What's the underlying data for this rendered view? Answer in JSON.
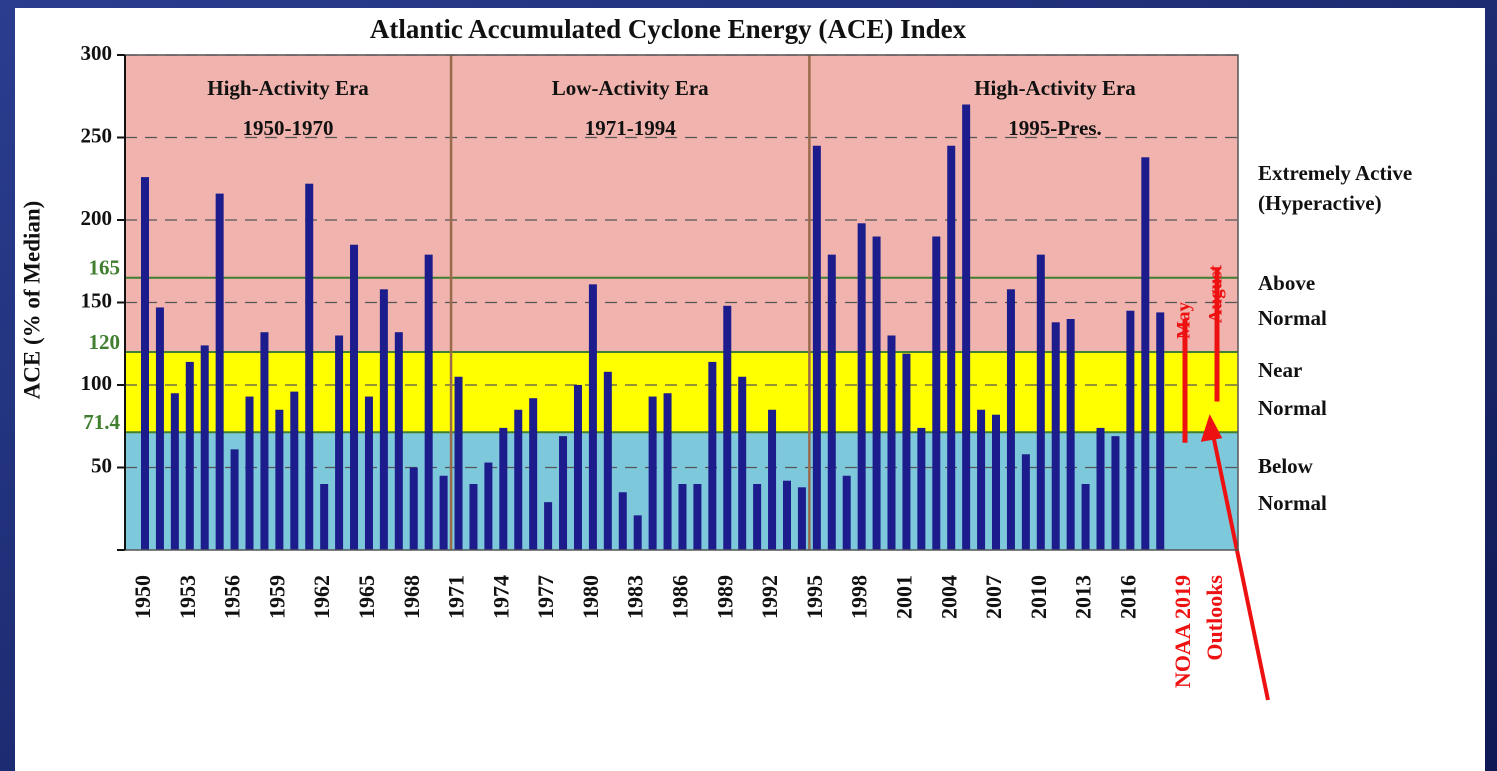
{
  "chart_data": {
    "type": "bar",
    "title": "Atlantic Accumulated Cyclone Energy (ACE) Index",
    "ylabel": "ACE  (% of Median)",
    "categories": [
      "1950",
      null,
      null,
      "1953",
      null,
      null,
      "1956",
      null,
      null,
      "1959",
      null,
      null,
      "1962",
      null,
      null,
      "1965",
      null,
      null,
      "1968",
      null,
      null,
      "1971",
      null,
      null,
      "1974",
      null,
      null,
      "1977",
      null,
      null,
      "1980",
      null,
      null,
      "1983",
      null,
      null,
      "1986",
      null,
      null,
      "1989",
      null,
      null,
      "1992",
      null,
      null,
      "1995",
      null,
      null,
      "1998",
      null,
      null,
      "2001",
      null,
      null,
      "2004",
      null,
      null,
      "2007",
      null,
      null,
      "2010",
      null,
      null,
      "2013",
      null,
      null,
      "2016",
      null,
      null,
      "NOAA 2019",
      "Outlooks"
    ],
    "values": [
      226,
      147,
      95,
      114,
      124,
      216,
      61,
      93,
      132,
      85,
      96,
      222,
      40,
      130,
      185,
      93,
      158,
      132,
      50,
      179,
      45,
      105,
      40,
      53,
      74,
      85,
      92,
      29,
      69,
      100,
      161,
      108,
      35,
      21,
      93,
      95,
      40,
      40,
      114,
      148,
      105,
      40,
      85,
      42,
      38,
      245,
      179,
      45,
      198,
      190,
      130,
      119,
      74,
      190,
      245,
      270,
      85,
      82,
      158,
      58,
      179,
      138,
      140,
      40,
      74,
      69,
      145,
      238,
      144,
      null,
      null
    ],
    "color": "#1c1c8c",
    "ylim": [
      0,
      300
    ],
    "yticks": [
      50,
      100,
      150,
      200,
      250,
      300
    ],
    "grid": true,
    "thresholds": [
      71.4,
      120,
      165
    ],
    "threshold_color": "#3f7f2f",
    "band_colors": [
      "#7ec8dc",
      "#ffff00",
      "#f0b3ad"
    ],
    "eras": [
      {
        "title": "High-Activity Era",
        "years": "1950-1970",
        "start": "1950"
      },
      {
        "title": "Low-Activity Era",
        "years": "1971-1994",
        "start": "1971"
      },
      {
        "title": "High-Activity Era",
        "years": "1995-Pres.",
        "start": "1995"
      }
    ],
    "outlook_color": "#ee1111",
    "outlooks": [
      {
        "name": "May",
        "low": 65,
        "high": 140
      },
      {
        "name": "August",
        "low": 90,
        "high": 170
      }
    ],
    "classes": [
      [
        "Extremely Active",
        "(Hyperactive)"
      ],
      [
        "Above",
        "Normal"
      ],
      [
        "Near",
        "Normal"
      ],
      [
        "Below",
        "Normal"
      ]
    ]
  }
}
